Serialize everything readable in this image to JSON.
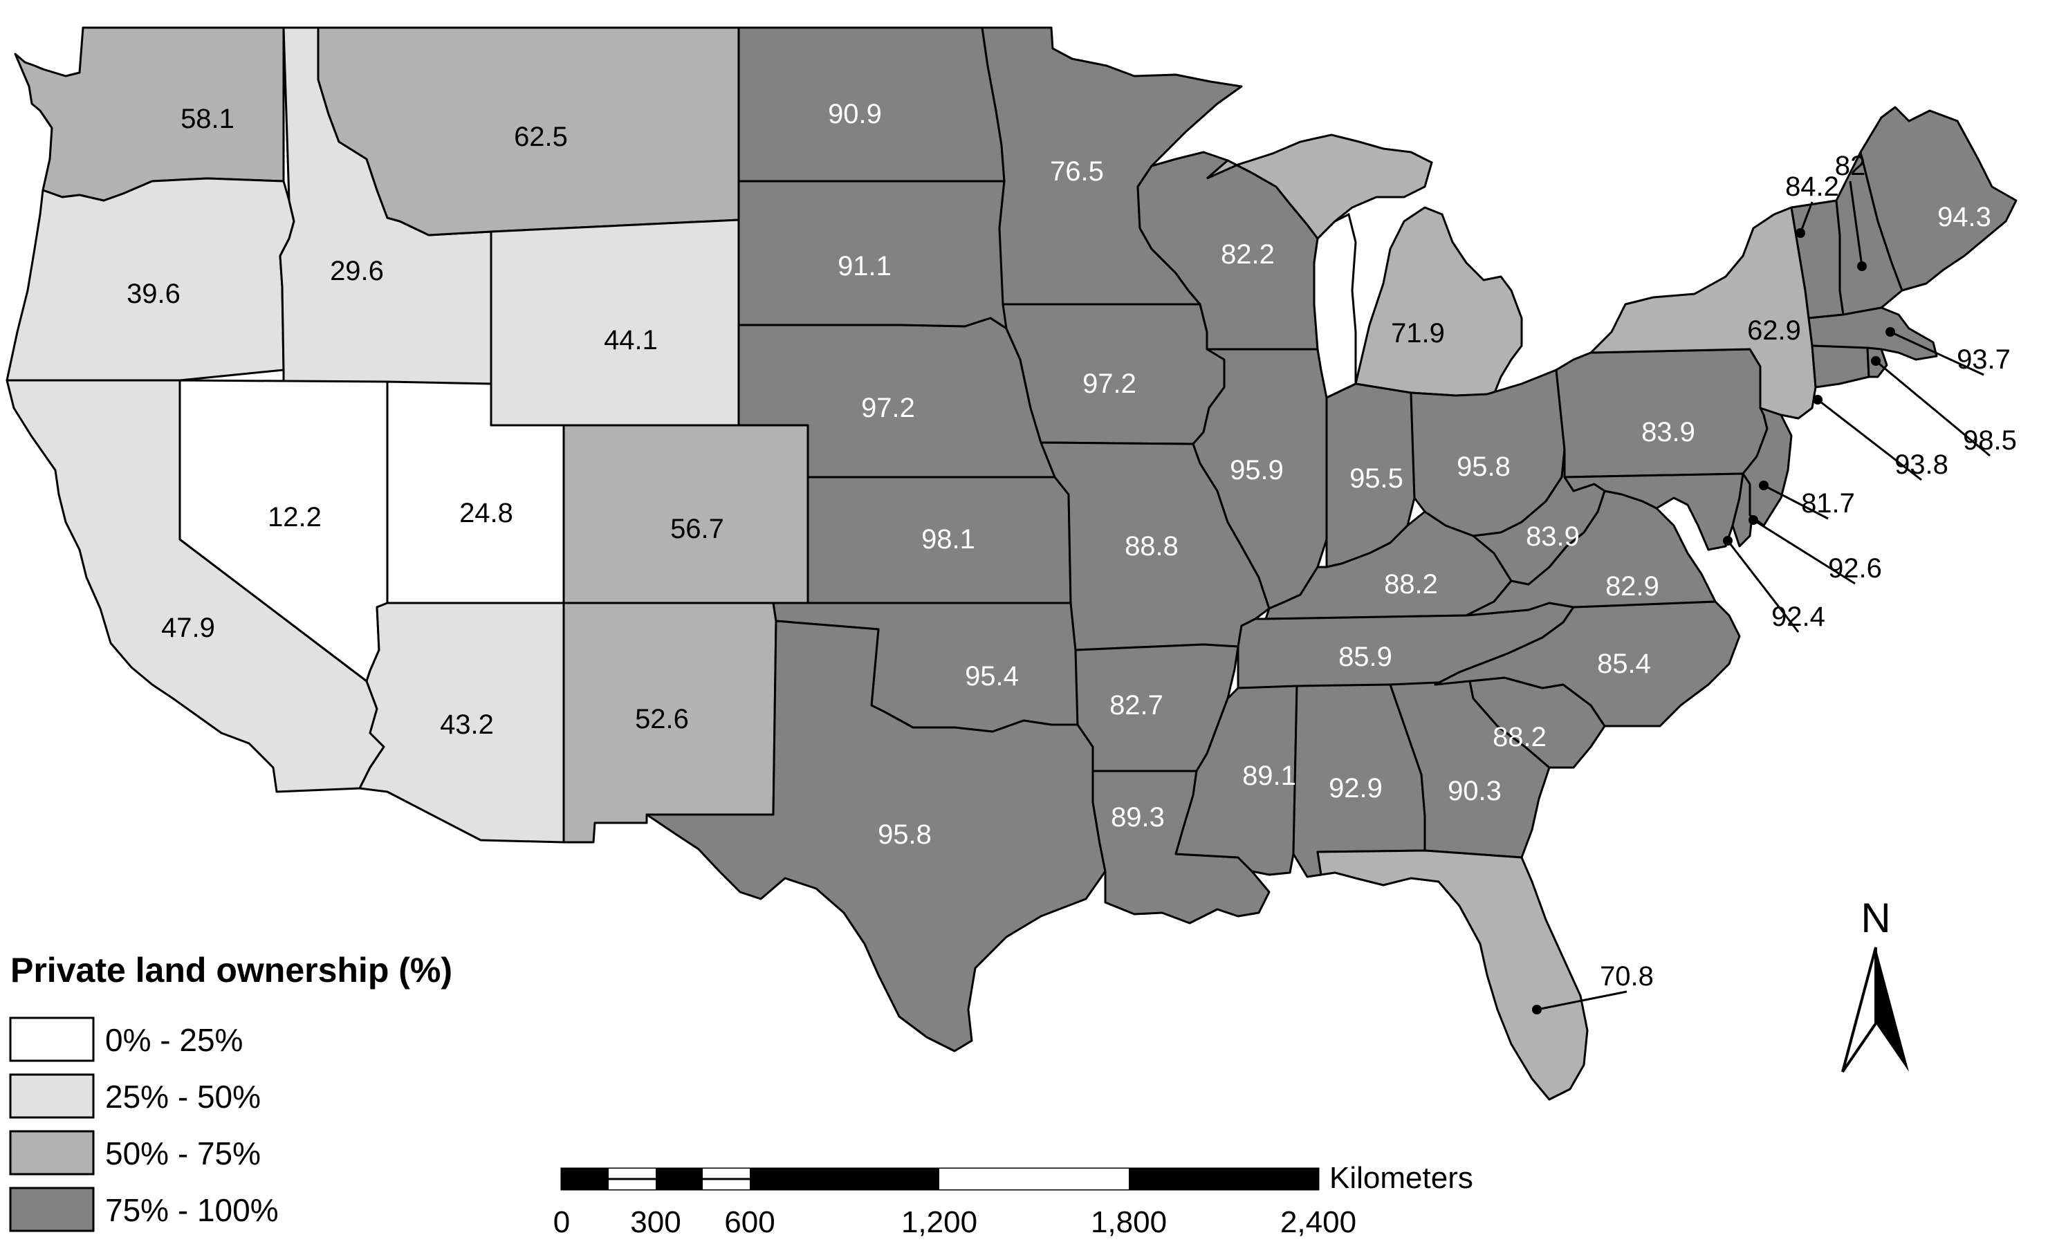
{
  "map": {
    "legend": {
      "title": "Private land ownership (%)",
      "classes": [
        {
          "label": "0% - 25%",
          "color": "#ffffff"
        },
        {
          "label": "25% - 50%",
          "color": "#e1e1e1"
        },
        {
          "label": "50% - 75%",
          "color": "#b2b2b2"
        },
        {
          "label": "75% - 100%",
          "color": "#828282"
        }
      ]
    },
    "north_arrow": {
      "label": "N"
    },
    "scale_bar": {
      "unit": "Kilometers",
      "ticks": [
        "0",
        "300",
        "600",
        "1,200",
        "1,800",
        "2,400"
      ]
    },
    "states": [
      {
        "id": "wa",
        "value": "58.1",
        "class": 2
      },
      {
        "id": "or",
        "value": "39.6",
        "class": 1
      },
      {
        "id": "ca",
        "value": "47.9",
        "class": 1
      },
      {
        "id": "id",
        "value": "29.6",
        "class": 1
      },
      {
        "id": "nv",
        "value": "12.2",
        "class": 0
      },
      {
        "id": "ut",
        "value": "24.8",
        "class": 0
      },
      {
        "id": "az",
        "value": "43.2",
        "class": 1
      },
      {
        "id": "mt",
        "value": "62.5",
        "class": 2
      },
      {
        "id": "wy",
        "value": "44.1",
        "class": 1
      },
      {
        "id": "co",
        "value": "56.7",
        "class": 2
      },
      {
        "id": "nm",
        "value": "52.6",
        "class": 2
      },
      {
        "id": "nd",
        "value": "90.9",
        "class": 3
      },
      {
        "id": "sd",
        "value": "91.1",
        "class": 3
      },
      {
        "id": "ne",
        "value": "97.2",
        "class": 3
      },
      {
        "id": "ks",
        "value": "98.1",
        "class": 3
      },
      {
        "id": "ok",
        "value": "95.4",
        "class": 3
      },
      {
        "id": "tx",
        "value": "95.8",
        "class": 3
      },
      {
        "id": "mn",
        "value": "76.5",
        "class": 3
      },
      {
        "id": "ia",
        "value": "97.2",
        "class": 3
      },
      {
        "id": "mo",
        "value": "88.8",
        "class": 3
      },
      {
        "id": "ar",
        "value": "82.7",
        "class": 3
      },
      {
        "id": "la",
        "value": "89.3",
        "class": 3
      },
      {
        "id": "wi",
        "value": "82.2",
        "class": 3
      },
      {
        "id": "il",
        "value": "95.9",
        "class": 3
      },
      {
        "id": "mi",
        "value": "71.9",
        "class": 2
      },
      {
        "id": "in",
        "value": "95.5",
        "class": 3
      },
      {
        "id": "oh",
        "value": "95.8",
        "class": 3
      },
      {
        "id": "ky",
        "value": "88.2",
        "class": 3
      },
      {
        "id": "tn",
        "value": "85.9",
        "class": 3
      },
      {
        "id": "ms",
        "value": "89.1",
        "class": 3
      },
      {
        "id": "al",
        "value": "92.9",
        "class": 3
      },
      {
        "id": "ga",
        "value": "90.3",
        "class": 3
      },
      {
        "id": "fl",
        "value": "70.8",
        "class": 2
      },
      {
        "id": "sc",
        "value": "88.2",
        "class": 3
      },
      {
        "id": "nc",
        "value": "85.4",
        "class": 3
      },
      {
        "id": "va",
        "value": "82.9",
        "class": 3
      },
      {
        "id": "wv",
        "value": "83.9",
        "class": 3
      },
      {
        "id": "pa",
        "value": "83.9",
        "class": 3
      },
      {
        "id": "ny",
        "value": "62.9",
        "class": 2
      },
      {
        "id": "vt",
        "value": "84.2",
        "class": 3
      },
      {
        "id": "nh",
        "value": "82",
        "class": 3
      },
      {
        "id": "me",
        "value": "94.3",
        "class": 3
      },
      {
        "id": "ma",
        "value": "93.7",
        "class": 3
      },
      {
        "id": "ri",
        "value": "98.5",
        "class": 3
      },
      {
        "id": "ct",
        "value": "93.8",
        "class": 3
      },
      {
        "id": "nj",
        "value": "81.7",
        "class": 3
      },
      {
        "id": "de",
        "value": "92.6",
        "class": 3
      },
      {
        "id": "md",
        "value": "92.4",
        "class": 3
      }
    ]
  }
}
